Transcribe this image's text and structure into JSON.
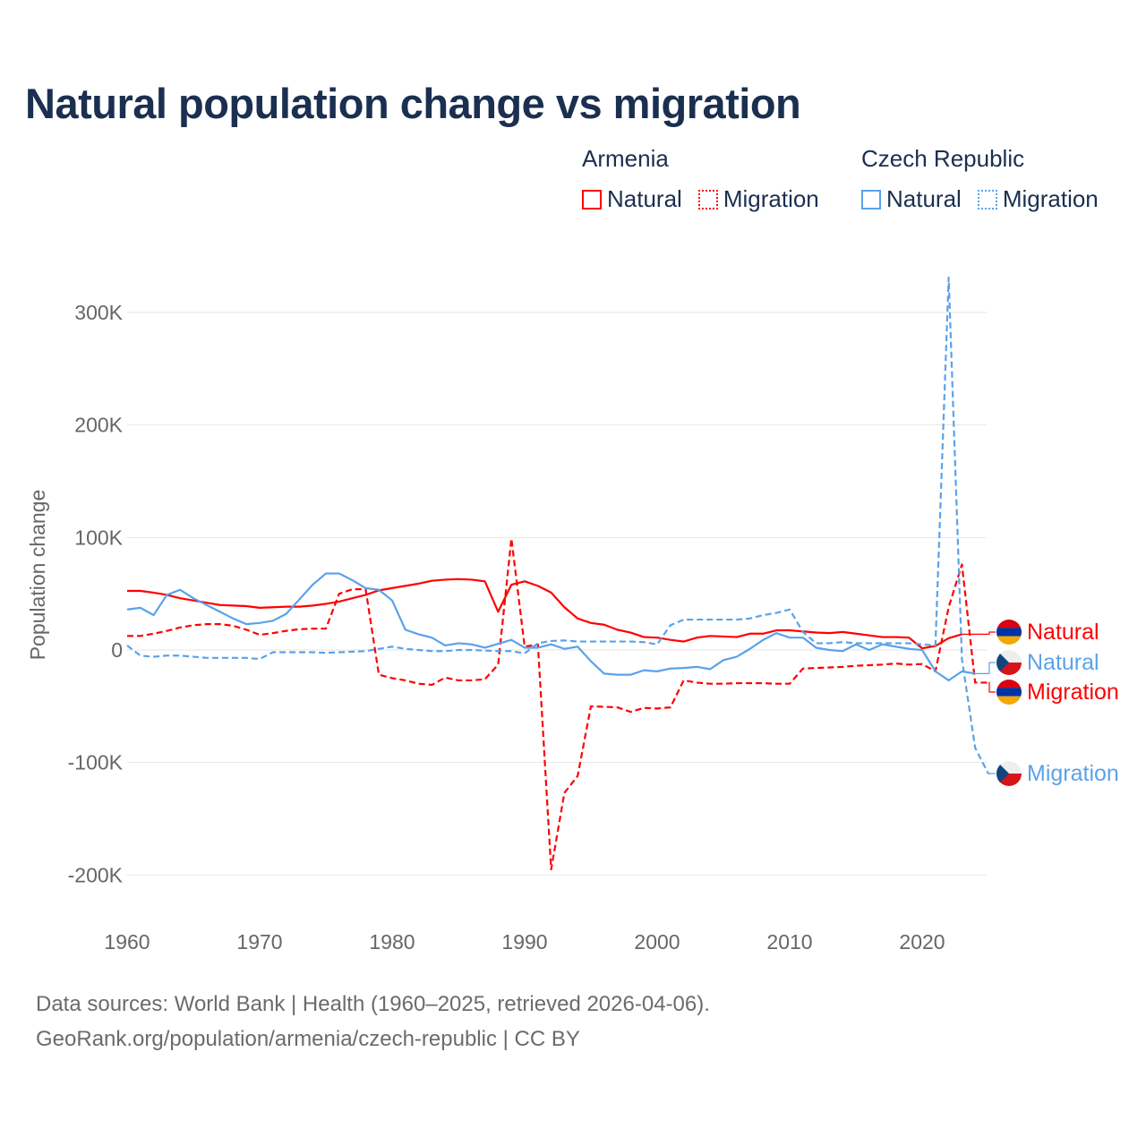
{
  "title": "Natural population change vs migration",
  "legend": {
    "groups": [
      {
        "name": "Armenia",
        "color": "#ff0000",
        "items": [
          "Natural",
          "Migration"
        ]
      },
      {
        "name": "Czech Republic",
        "color": "#5aa2ea",
        "items": [
          "Natural",
          "Migration"
        ]
      }
    ]
  },
  "footer": {
    "line1": "Data sources: World Bank | Health (1960–2025, retrieved 2026-04-06).",
    "line2": "GeoRank.org/population/armenia/czech-republic | CC BY"
  },
  "chart_data": {
    "type": "line",
    "title": "Natural population change vs migration",
    "xlabel": "",
    "ylabel": "Population change",
    "xlim": [
      1960,
      2025
    ],
    "ylim": [
      -220000,
      340000
    ],
    "x_ticks": [
      1960,
      1970,
      1980,
      1990,
      2000,
      2010,
      2020
    ],
    "x_tick_labels": [
      "1960",
      "1970",
      "1980",
      "1990",
      "2000",
      "2010",
      "2020"
    ],
    "y_ticks": [
      -200000,
      -100000,
      0,
      100000,
      200000,
      300000
    ],
    "y_tick_labels": [
      "-200K",
      "-100K",
      "0",
      "100K",
      "200K",
      "300K"
    ],
    "grid": true,
    "legend_position": "top-right",
    "x_start": 1960,
    "series": [
      {
        "name": "Armenia Natural",
        "label": "Natural",
        "country": "Armenia",
        "color": "#ff0000",
        "dash": false,
        "values_k": [
          52.5,
          52.5,
          51,
          49,
          46,
          44,
          42,
          40,
          39.5,
          39,
          37.5,
          38,
          38.5,
          38.5,
          39.5,
          41,
          43,
          46,
          49,
          53,
          55,
          57,
          59,
          61.5,
          62.5,
          63,
          62.5,
          61,
          34,
          58,
          61,
          57,
          51,
          38,
          28,
          24,
          22.5,
          18,
          15.5,
          11.5,
          11,
          9,
          7.5,
          11,
          12.5,
          12,
          11.5,
          14.5,
          14.5,
          17.5,
          17.5,
          16.5,
          15.5,
          15,
          16,
          14.5,
          13,
          11.5,
          11.5,
          11,
          1.5,
          3.5,
          10.5,
          14
        ]
      },
      {
        "name": "Armenia Migration",
        "label": "Migration",
        "country": "Armenia",
        "color": "#ff0000",
        "dash": true,
        "values_k": [
          12.5,
          12.5,
          14.5,
          17,
          20,
          22,
          23,
          23,
          21.5,
          18,
          13.5,
          15,
          17,
          18.5,
          19,
          19,
          50,
          54,
          54,
          -22,
          -25,
          -27,
          -30,
          -31,
          -24.5,
          -27,
          -27,
          -26,
          -13,
          99,
          3,
          5,
          -195,
          -127,
          -112,
          -50,
          -50.5,
          -51,
          -55,
          -51.5,
          -52,
          -51,
          -27,
          -29,
          -30,
          -30,
          -29.5,
          -29.5,
          -29.5,
          -30,
          -30,
          -16.5,
          -16,
          -15.5,
          -15,
          -14,
          -13.5,
          -13,
          -12,
          -13,
          -12.5,
          -19,
          38,
          76,
          -29,
          -29
        ]
      },
      {
        "name": "Czech Republic Natural",
        "label": "Natural",
        "country": "Czech Republic",
        "color": "#5aa2ea",
        "dash": false,
        "values_k": [
          36,
          37.5,
          31,
          49,
          53.5,
          46,
          40,
          34,
          28,
          23,
          24,
          26,
          32,
          45,
          58,
          68,
          68,
          62,
          55,
          53.5,
          44,
          18,
          14,
          11,
          4,
          6,
          5,
          2,
          5.5,
          9,
          2,
          2,
          5,
          1,
          3,
          -10,
          -21,
          -22,
          -22,
          -18,
          -19,
          -16.5,
          -16,
          -15,
          -17,
          -9,
          -6,
          1,
          9,
          15,
          11,
          11,
          2,
          0,
          -1,
          5,
          0,
          5,
          3,
          1,
          0,
          -19,
          -27,
          -19,
          -21
        ]
      },
      {
        "name": "Czech Republic Migration",
        "label": "Migration",
        "country": "Czech Republic",
        "color": "#5aa2ea",
        "dash": true,
        "values_k": [
          4,
          -5,
          -6,
          -5,
          -5,
          -6,
          -7,
          -7,
          -7,
          -7,
          -8,
          -2,
          -2,
          -2,
          -2,
          -2.5,
          -2,
          -1.5,
          -1,
          1,
          3,
          1,
          0,
          -1,
          -1,
          0,
          0,
          -0.5,
          -1,
          -1,
          -3,
          6,
          8,
          8.5,
          7.5,
          7.5,
          7.5,
          7.5,
          7.5,
          7,
          5,
          22,
          27,
          27,
          27,
          27,
          27,
          28,
          31,
          33,
          36,
          16,
          6,
          6,
          7,
          6,
          6,
          6,
          6,
          6,
          5,
          4,
          331,
          -8,
          -87,
          -110
        ]
      }
    ]
  }
}
